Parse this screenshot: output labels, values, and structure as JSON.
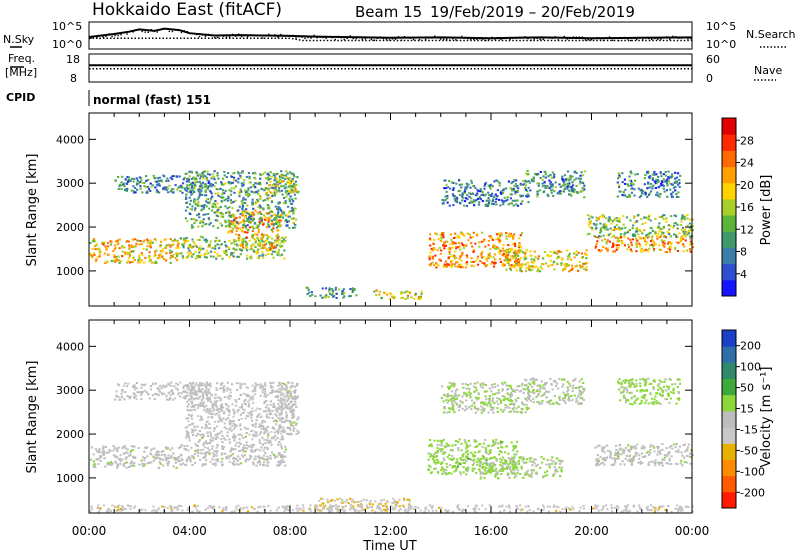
{
  "header": {
    "title": "Hokkaido East (fitACF)",
    "beam": "Beam 15",
    "daterange": "19/Feb/2019 – 20/Feb/2019"
  },
  "summary": {
    "nsky_label": "N.Sky",
    "nsearch_label": "N.Search",
    "freq_label_1": "Freq.",
    "freq_label_2": "[MHz]",
    "nave_label": "Nave",
    "cpid_label": "CPID",
    "cpid_value": "normal (fast) 151",
    "noise_ticks": [
      "10^5",
      "10^0"
    ],
    "freq_ticks": [
      "18",
      "8"
    ],
    "nave_ticks": [
      "60",
      "0"
    ]
  },
  "axis": {
    "xlabel": "Time UT",
    "ylabel": "Slant Range [km]",
    "xticks": [
      "00:00",
      "04:00",
      "08:00",
      "12:00",
      "16:00",
      "20:00",
      "00:00"
    ],
    "yticks": [
      "1000",
      "2000",
      "3000",
      "4000"
    ]
  },
  "power_bar": {
    "label": "Power [dB]",
    "ticks": [
      "4",
      "8",
      "12",
      "16",
      "20",
      "24",
      "28"
    ],
    "colors": [
      "#1414ff",
      "#2f4fd0",
      "#3a7fa8",
      "#3f9a6b",
      "#5ab53a",
      "#a8cf2a",
      "#ffd400",
      "#ffa000",
      "#ff6a00",
      "#ff2a00",
      "#e00000"
    ]
  },
  "velocity_bar": {
    "label": "Velocity [m s⁻¹]",
    "ticks": [
      "200",
      "100",
      "50",
      "15",
      "-15",
      "-50",
      "-100",
      "-200"
    ],
    "colors": [
      "#1c3fc8",
      "#2f6fa8",
      "#2f8a6a",
      "#3faa3a",
      "#8cd83a",
      "#bdbdbd",
      "#c8c8c8",
      "#e8b000",
      "#ff8c00",
      "#ff5a00",
      "#ff1a00"
    ]
  },
  "chart_data": [
    {
      "type": "line",
      "title": "",
      "series": [
        {
          "name": "N.Sky",
          "x": [
            0,
            1,
            1.6,
            2,
            2.6,
            3,
            3.6,
            4,
            5,
            6,
            7,
            8,
            9,
            10,
            12,
            14,
            16,
            18,
            20,
            22,
            24
          ],
          "y": [
            2.6,
            3.4,
            4.0,
            4.6,
            4.2,
            4.8,
            4.4,
            3.6,
            3.0,
            3.1,
            3.0,
            2.9,
            2.7,
            2.6,
            2.4,
            2.5,
            2.3,
            2.5,
            2.3,
            2.4,
            2.5
          ]
        },
        {
          "name": "N.Search",
          "x": [
            0,
            8,
            8.5,
            24
          ],
          "y": [
            2.3,
            2.3,
            1.7,
            1.7
          ]
        }
      ],
      "xlim": [
        0,
        24
      ]
    },
    {
      "type": "line",
      "title": "",
      "series": [
        {
          "name": "Freq.",
          "x": [
            0,
            24
          ],
          "y": [
            11,
            11
          ]
        },
        {
          "name": "Nave",
          "x": [
            0,
            24
          ],
          "y": [
            28,
            28
          ]
        }
      ],
      "xlim": [
        0,
        24
      ]
    },
    {
      "type": "heatmap",
      "title": "",
      "xlabel": "Time UT",
      "ylabel": "Slant Range [km]",
      "xlim": [
        0,
        24
      ],
      "ylim": [
        200,
        4600
      ],
      "colorbar": "Power [dB]",
      "clim": [
        0,
        32
      ],
      "echo_regions": [
        {
          "t0": 0.0,
          "t1": 3.6,
          "r0": 1200,
          "r1": 1750,
          "value": 20
        },
        {
          "t0": 3.6,
          "t1": 7.8,
          "r0": 1300,
          "r1": 1800,
          "value": 14
        },
        {
          "t0": 5.5,
          "t1": 7.6,
          "r0": 1500,
          "r1": 2400,
          "value": 20
        },
        {
          "t0": 3.8,
          "t1": 8.2,
          "r0": 2000,
          "r1": 3300,
          "value": 11
        },
        {
          "t0": 1.0,
          "t1": 4.8,
          "r0": 2800,
          "r1": 3200,
          "value": 9
        },
        {
          "t0": 7.0,
          "t1": 8.3,
          "r0": 2800,
          "r1": 3200,
          "value": 16
        },
        {
          "t0": 8.6,
          "t1": 10.6,
          "r0": 400,
          "r1": 650,
          "value": 10
        },
        {
          "t0": 11.3,
          "t1": 13.2,
          "r0": 380,
          "r1": 580,
          "value": 18
        },
        {
          "t0": 13.5,
          "t1": 17.2,
          "r0": 1100,
          "r1": 1900,
          "value": 22
        },
        {
          "t0": 16.5,
          "t1": 19.8,
          "r0": 1000,
          "r1": 1500,
          "value": 19
        },
        {
          "t0": 14.0,
          "t1": 17.5,
          "r0": 2500,
          "r1": 3100,
          "value": 8
        },
        {
          "t0": 17.3,
          "t1": 19.7,
          "r0": 2700,
          "r1": 3300,
          "value": 9
        },
        {
          "t0": 20.1,
          "t1": 24.0,
          "r0": 1450,
          "r1": 1800,
          "value": 22
        },
        {
          "t0": 19.8,
          "t1": 24.0,
          "r0": 1800,
          "r1": 2300,
          "value": 14
        },
        {
          "t0": 21.0,
          "t1": 23.5,
          "r0": 2700,
          "r1": 3300,
          "value": 8
        }
      ]
    },
    {
      "type": "heatmap",
      "title": "",
      "xlabel": "Time UT",
      "ylabel": "Slant Range [km]",
      "xlim": [
        0,
        24
      ],
      "ylim": [
        200,
        4600
      ],
      "colorbar": "Velocity [m s⁻¹]",
      "clim": [
        -250,
        250
      ],
      "echo_regions": [
        {
          "t0": 0.0,
          "t1": 3.6,
          "r0": 1250,
          "r1": 1750,
          "value": 0
        },
        {
          "t0": 3.6,
          "t1": 7.8,
          "r0": 1300,
          "r1": 2000,
          "value": -5
        },
        {
          "t0": 3.8,
          "t1": 8.2,
          "r0": 2000,
          "r1": 3200,
          "value": -20
        },
        {
          "t0": 1.0,
          "t1": 4.8,
          "r0": 2800,
          "r1": 3200,
          "value": -10
        },
        {
          "t0": 7.4,
          "t1": 8.3,
          "r0": 2000,
          "r1": 3200,
          "value": 0
        },
        {
          "t0": 9.0,
          "t1": 12.8,
          "r0": 300,
          "r1": 550,
          "value": -60
        },
        {
          "t0": 13.4,
          "t1": 17.0,
          "r0": 1100,
          "r1": 1900,
          "value": 40
        },
        {
          "t0": 15.5,
          "t1": 18.8,
          "r0": 1000,
          "r1": 1500,
          "value": 30
        },
        {
          "t0": 14.0,
          "t1": 17.5,
          "r0": 2500,
          "r1": 3200,
          "value": 25
        },
        {
          "t0": 17.3,
          "t1": 19.7,
          "r0": 2700,
          "r1": 3300,
          "value": 10
        },
        {
          "t0": 20.1,
          "t1": 24.0,
          "r0": 1300,
          "r1": 1800,
          "value": 0
        },
        {
          "t0": 21.0,
          "t1": 23.5,
          "r0": 2700,
          "r1": 3300,
          "value": 35
        },
        {
          "t0": 0.0,
          "t1": 24.0,
          "r0": 250,
          "r1": 400,
          "value": -45
        }
      ]
    }
  ]
}
